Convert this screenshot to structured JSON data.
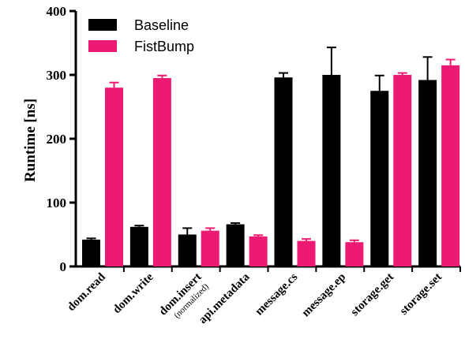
{
  "chart_data": {
    "type": "bar",
    "title": "",
    "xlabel": "",
    "ylabel": "Runtime [ns]",
    "ylim": [
      0,
      400
    ],
    "yticks": [
      0,
      100,
      200,
      300,
      400
    ],
    "categories": [
      "dom.read",
      "dom.write",
      "dom.insert",
      "api.metadata",
      "message.cs",
      "message.ep",
      "storage.get",
      "storage.set"
    ],
    "category_notes": [
      "",
      "",
      "(normalized)",
      "",
      "",
      "",
      "",
      ""
    ],
    "series": [
      {
        "name": "Baseline",
        "color": "#000000",
        "values": [
          42,
          62,
          50,
          66,
          296,
          300,
          275,
          292
        ],
        "error_plus": [
          2,
          2,
          10,
          2,
          7,
          43,
          24,
          36
        ]
      },
      {
        "name": "FistBump",
        "color": "#ec1a72",
        "values": [
          280,
          295,
          56,
          47,
          40,
          38,
          300,
          315
        ],
        "error_plus": [
          8,
          4,
          4,
          2,
          3,
          3,
          3,
          9
        ]
      }
    ],
    "grid": false,
    "legend": "top-left",
    "error_bars": "upper"
  }
}
